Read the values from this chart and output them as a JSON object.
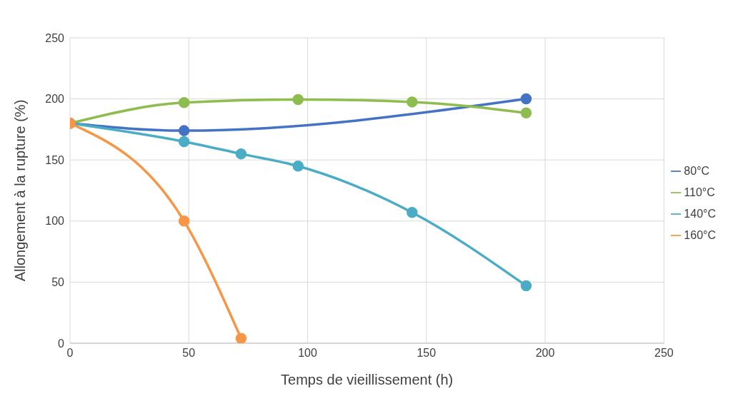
{
  "chart_data": {
    "type": "line",
    "xlabel": "Temps de vieillissement (h)",
    "ylabel": "Allongement à la rupture (%)",
    "xlim": [
      0,
      250
    ],
    "xticks": [
      0,
      50,
      100,
      150,
      200,
      250
    ],
    "ylim": [
      0,
      250
    ],
    "yticks": [
      0,
      50,
      100,
      150,
      200,
      250
    ],
    "grid": true,
    "legend": "right",
    "marker": "circle",
    "series": [
      {
        "name": "80°C",
        "color": "#4472c4",
        "x": [
          0,
          48,
          192
        ],
        "values": [
          180,
          174,
          200
        ]
      },
      {
        "name": "110°C",
        "color": "#8fbc4f",
        "x": [
          0,
          48,
          96,
          144,
          192
        ],
        "values": [
          180,
          197,
          199.5,
          197.5,
          188.5
        ]
      },
      {
        "name": "140°C",
        "color": "#4bacc6",
        "x": [
          0,
          48,
          72,
          96,
          144,
          192
        ],
        "values": [
          180,
          165,
          155,
          145,
          107,
          47
        ]
      },
      {
        "name": "160°C",
        "color": "#f79646",
        "x": [
          0,
          48,
          72
        ],
        "values": [
          180,
          100,
          4
        ]
      }
    ]
  }
}
